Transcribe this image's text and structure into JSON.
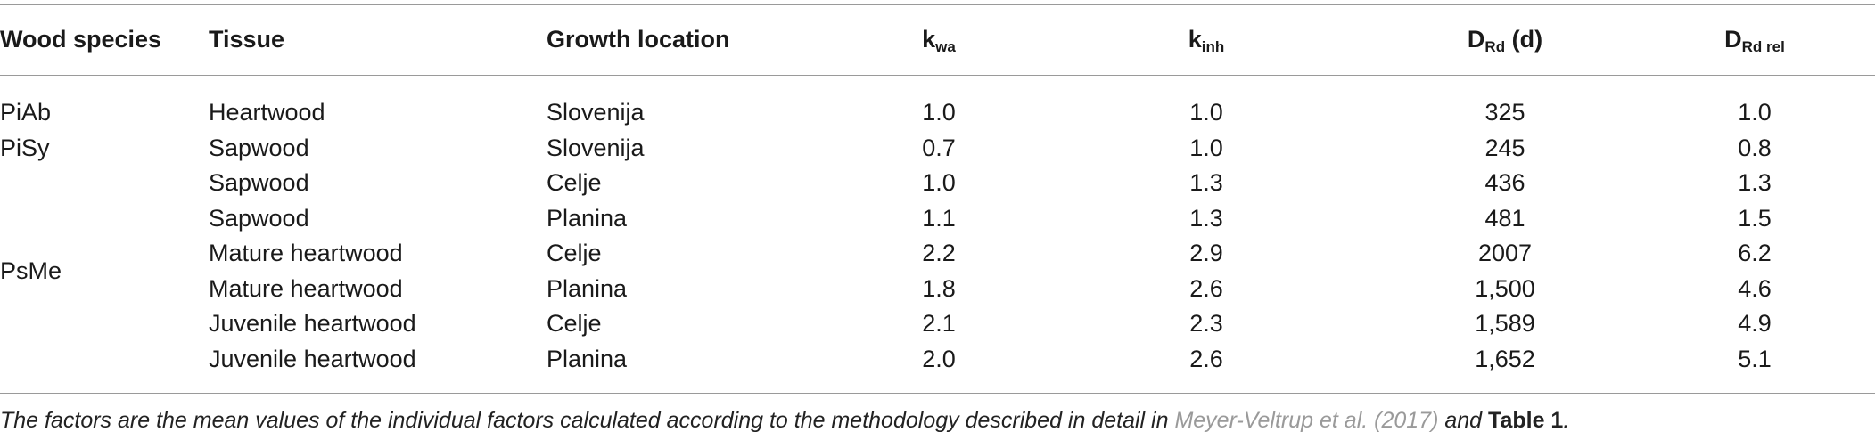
{
  "table": {
    "headers": {
      "species": "Wood species",
      "tissue": "Tissue",
      "location": "Growth location",
      "kwa_main": "k",
      "kwa_sub": "wa",
      "kinh_main": "k",
      "kinh_sub": "inh",
      "drd_main": "D",
      "drd_sub": "Rd",
      "drd_unit": " (d)",
      "drel_main": "D",
      "drel_sub": "Rd rel"
    },
    "species_labels": [
      "PiAb",
      "PiSy",
      "PsMe"
    ],
    "rows": [
      {
        "tissue": "Heartwood",
        "location": "Slovenija",
        "kwa": "1.0",
        "kinh": "1.0",
        "drd": "325",
        "drel": "1.0"
      },
      {
        "tissue": "Sapwood",
        "location": "Slovenija",
        "kwa": "0.7",
        "kinh": "1.0",
        "drd": "245",
        "drel": "0.8"
      },
      {
        "tissue": "Sapwood",
        "location": "Celje",
        "kwa": "1.0",
        "kinh": "1.3",
        "drd": "436",
        "drel": "1.3"
      },
      {
        "tissue": "Sapwood",
        "location": "Planina",
        "kwa": "1.1",
        "kinh": "1.3",
        "drd": "481",
        "drel": "1.5"
      },
      {
        "tissue": "Mature heartwood",
        "location": "Celje",
        "kwa": "2.2",
        "kinh": "2.9",
        "drd": "2007",
        "drel": "6.2"
      },
      {
        "tissue": "Mature heartwood",
        "location": "Planina",
        "kwa": "1.8",
        "kinh": "2.6",
        "drd": "1,500",
        "drel": "4.6"
      },
      {
        "tissue": "Juvenile heartwood",
        "location": "Celje",
        "kwa": "2.1",
        "kinh": "2.3",
        "drd": "1,589",
        "drel": "4.9"
      },
      {
        "tissue": "Juvenile heartwood",
        "location": "Planina",
        "kwa": "2.0",
        "kinh": "2.6",
        "drd": "1,652",
        "drel": "5.1"
      }
    ]
  },
  "footnote": {
    "text_before": "The factors are the mean values of the individual factors calculated according to the methodology described in detail in ",
    "reference": "Meyer-Veltrup et al. (2017)",
    "text_middle": " and ",
    "table_ref": "Table 1",
    "text_after": "."
  }
}
